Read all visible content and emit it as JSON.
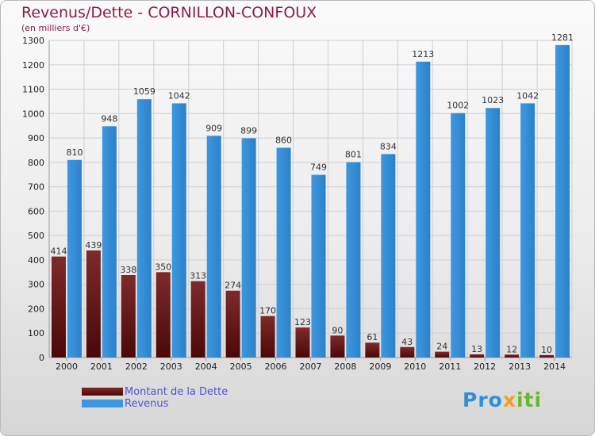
{
  "chart_data": {
    "type": "bar",
    "title": "Revenus/Dette - CORNILLON-CONFOUX",
    "subtitle": "(en milliers d'€)",
    "categories": [
      "2000",
      "2001",
      "2002",
      "2003",
      "2004",
      "2005",
      "2006",
      "2007",
      "2008",
      "2009",
      "2010",
      "2011",
      "2012",
      "2013",
      "2014"
    ],
    "series": [
      {
        "name": "Montant de la Dette",
        "color": "#6e1515",
        "values": [
          414,
          439,
          338,
          350,
          313,
          274,
          170,
          123,
          90,
          61,
          43,
          24,
          13,
          12,
          10
        ]
      },
      {
        "name": "Revenus",
        "color": "#3d97e0",
        "values": [
          810,
          948,
          1059,
          1042,
          909,
          899,
          860,
          749,
          801,
          834,
          1213,
          1002,
          1023,
          1042,
          1281
        ]
      }
    ],
    "yticks": [
      0,
      100,
      200,
      300,
      400,
      500,
      600,
      700,
      800,
      900,
      1000,
      1100,
      1200,
      1300
    ],
    "ylim": [
      0,
      1300
    ],
    "grid": true,
    "legend": "bottom-left"
  },
  "legend": {
    "dette_label": "Montant de la Dette",
    "revenus_label": "Revenus"
  },
  "logo": {
    "part1": "Pro",
    "part2": "x",
    "part3": "iti"
  }
}
